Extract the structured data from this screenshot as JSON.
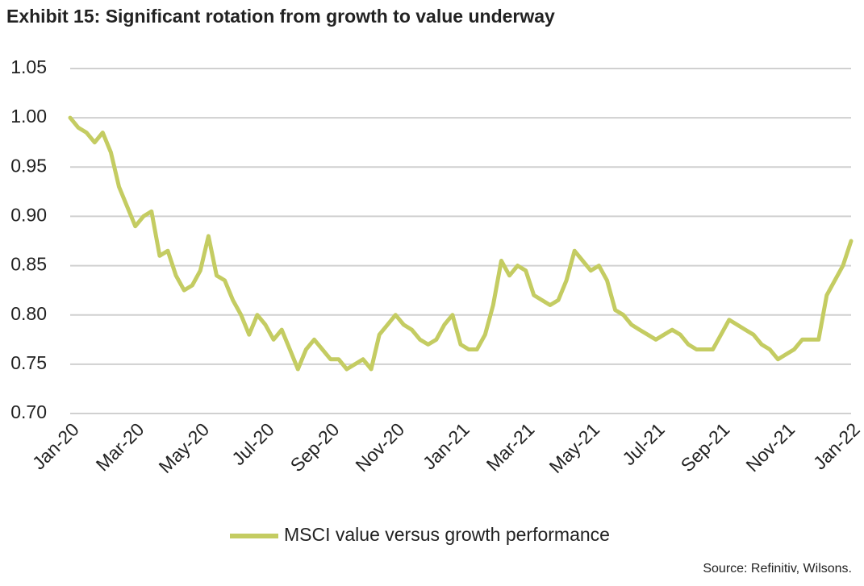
{
  "chart_data": {
    "type": "line",
    "title": "Exhibit 15: Significant rotation from growth to value underway",
    "source": "Source: Refinitiv, Wilsons.",
    "categories": [
      "Jan-20",
      null,
      null,
      null,
      null,
      null,
      null,
      null,
      "Mar-20",
      null,
      null,
      null,
      null,
      null,
      null,
      null,
      "May-20",
      null,
      null,
      null,
      null,
      null,
      null,
      null,
      "Jul-20",
      null,
      null,
      null,
      null,
      null,
      null,
      null,
      "Sep-20",
      null,
      null,
      null,
      null,
      null,
      null,
      null,
      "Nov-20",
      null,
      null,
      null,
      null,
      null,
      null,
      null,
      "Jan-21",
      null,
      null,
      null,
      null,
      null,
      null,
      null,
      "Mar-21",
      null,
      null,
      null,
      null,
      null,
      null,
      null,
      "May-21",
      null,
      null,
      null,
      null,
      null,
      null,
      null,
      "Jul-21",
      null,
      null,
      null,
      null,
      null,
      null,
      null,
      "Sep-21",
      null,
      null,
      null,
      null,
      null,
      null,
      null,
      "Nov-21",
      null,
      null,
      null,
      null,
      null,
      null,
      null,
      "Jan-22"
    ],
    "series": [
      {
        "name": "MSCI value versus growth performance",
        "color": "#c4cc62",
        "values": [
          1.0,
          0.99,
          0.985,
          0.975,
          0.985,
          0.965,
          0.93,
          0.91,
          0.89,
          0.9,
          0.905,
          0.86,
          0.865,
          0.84,
          0.825,
          0.83,
          0.845,
          0.88,
          0.84,
          0.835,
          0.815,
          0.8,
          0.78,
          0.8,
          0.79,
          0.775,
          0.785,
          0.765,
          0.745,
          0.765,
          0.775,
          0.765,
          0.755,
          0.755,
          0.745,
          0.75,
          0.755,
          0.745,
          0.78,
          0.79,
          0.8,
          0.79,
          0.785,
          0.775,
          0.77,
          0.775,
          0.79,
          0.8,
          0.77,
          0.765,
          0.765,
          0.78,
          0.81,
          0.855,
          0.84,
          0.85,
          0.845,
          0.82,
          0.815,
          0.81,
          0.815,
          0.835,
          0.865,
          0.855,
          0.845,
          0.85,
          0.835,
          0.805,
          0.8,
          0.79,
          0.785,
          0.78,
          0.775,
          0.78,
          0.785,
          0.78,
          0.77,
          0.765,
          0.765,
          0.765,
          0.78,
          0.795,
          0.79,
          0.785,
          0.78,
          0.77,
          0.765,
          0.755,
          0.76,
          0.765,
          0.775,
          0.775,
          0.775,
          0.82,
          0.835,
          0.85,
          0.875
        ]
      }
    ],
    "ylim": [
      0.7,
      1.05
    ],
    "yticks": [
      {
        "value": 0.7,
        "label": "0.70"
      },
      0.75,
      {
        "value": 0.8,
        "label": "0.80"
      },
      0.85,
      {
        "value": 0.9,
        "label": "0.90"
      },
      0.95,
      {
        "value": 1.0,
        "label": "1.00"
      },
      1.05
    ],
    "grid": true,
    "legend": "bottom"
  }
}
